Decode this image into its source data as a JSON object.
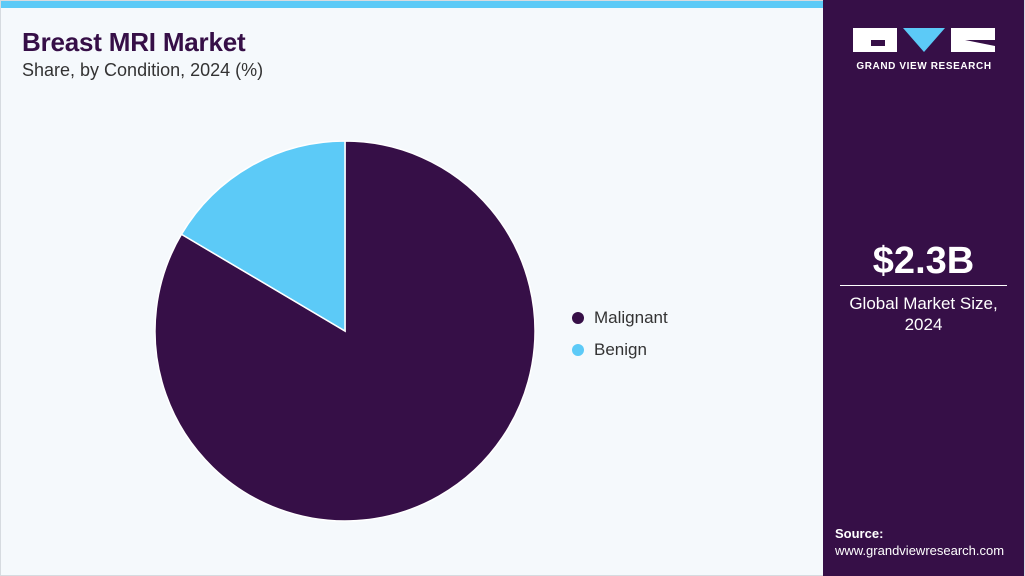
{
  "header": {
    "title": "Breast MRI Market",
    "subtitle": "Share, by Condition, 2024 (%)"
  },
  "chart_data": {
    "type": "pie",
    "categories": [
      "Malignant",
      "Benign"
    ],
    "values": [
      83.5,
      16.5
    ],
    "colors": [
      "#360f47",
      "#5ccaf7"
    ],
    "legend_position": "right",
    "start_angle_deg": 0,
    "direction": "clockwise"
  },
  "legend": {
    "items": [
      {
        "label": "Malignant",
        "color": "#360f47"
      },
      {
        "label": "Benign",
        "color": "#5ccaf7"
      }
    ]
  },
  "sidebar": {
    "logo_text": "GRAND VIEW RESEARCH",
    "market_value": "$2.3B",
    "market_label_line1": "Global Market Size,",
    "market_label_line2": "2024",
    "source_label": "Source:",
    "source_url": "www.grandviewresearch.com"
  },
  "colors": {
    "accent": "#5ccaf7",
    "brand": "#360f47",
    "background": "#f5f9fc"
  }
}
